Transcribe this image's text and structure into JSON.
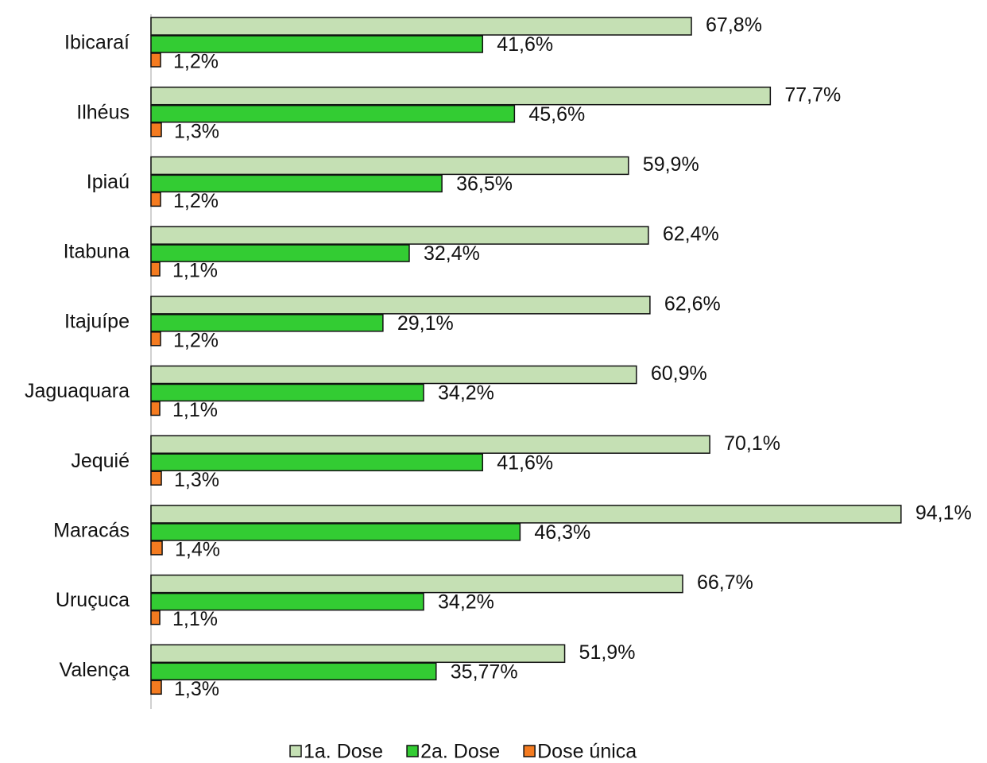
{
  "chart_data": {
    "type": "bar",
    "orientation": "horizontal",
    "categories": [
      "Ibicaraí",
      "Ilhéus",
      "Ipiaú",
      "Itabuna",
      "Itajuípe",
      "Jaguaquara",
      "Jequié",
      "Maracás",
      "Uruçuca",
      "Valença"
    ],
    "series": [
      {
        "name": "1a. Dose",
        "color": "#c5e0b4",
        "values": [
          67.8,
          77.7,
          59.9,
          62.4,
          62.6,
          60.9,
          70.1,
          94.1,
          66.7,
          51.9
        ],
        "value_labels": [
          "67,8%",
          "77,7%",
          "59,9%",
          "62,4%",
          "62,6%",
          "60,9%",
          "70,1%",
          "94,1%",
          "66,7%",
          "51,9%"
        ]
      },
      {
        "name": "2a. Dose",
        "color": "#33cc33",
        "values": [
          41.6,
          45.6,
          36.5,
          32.4,
          29.1,
          34.2,
          41.6,
          46.3,
          34.2,
          35.77
        ],
        "value_labels": [
          "41,6%",
          "45,6%",
          "36,5%",
          "32,4%",
          "29,1%",
          "34,2%",
          "41,6%",
          "46,3%",
          "34,2%",
          "35,77%"
        ]
      },
      {
        "name": "Dose única",
        "color": "#f47b20",
        "values": [
          1.2,
          1.3,
          1.2,
          1.1,
          1.2,
          1.1,
          1.3,
          1.4,
          1.1,
          1.3
        ],
        "value_labels": [
          "1,2%",
          "1,3%",
          "1,2%",
          "1,1%",
          "1,2%",
          "1,1%",
          "1,3%",
          "1,4%",
          "1,1%",
          "1,3%"
        ]
      }
    ],
    "xlim": [
      0,
      100
    ],
    "legend": "bottom"
  }
}
